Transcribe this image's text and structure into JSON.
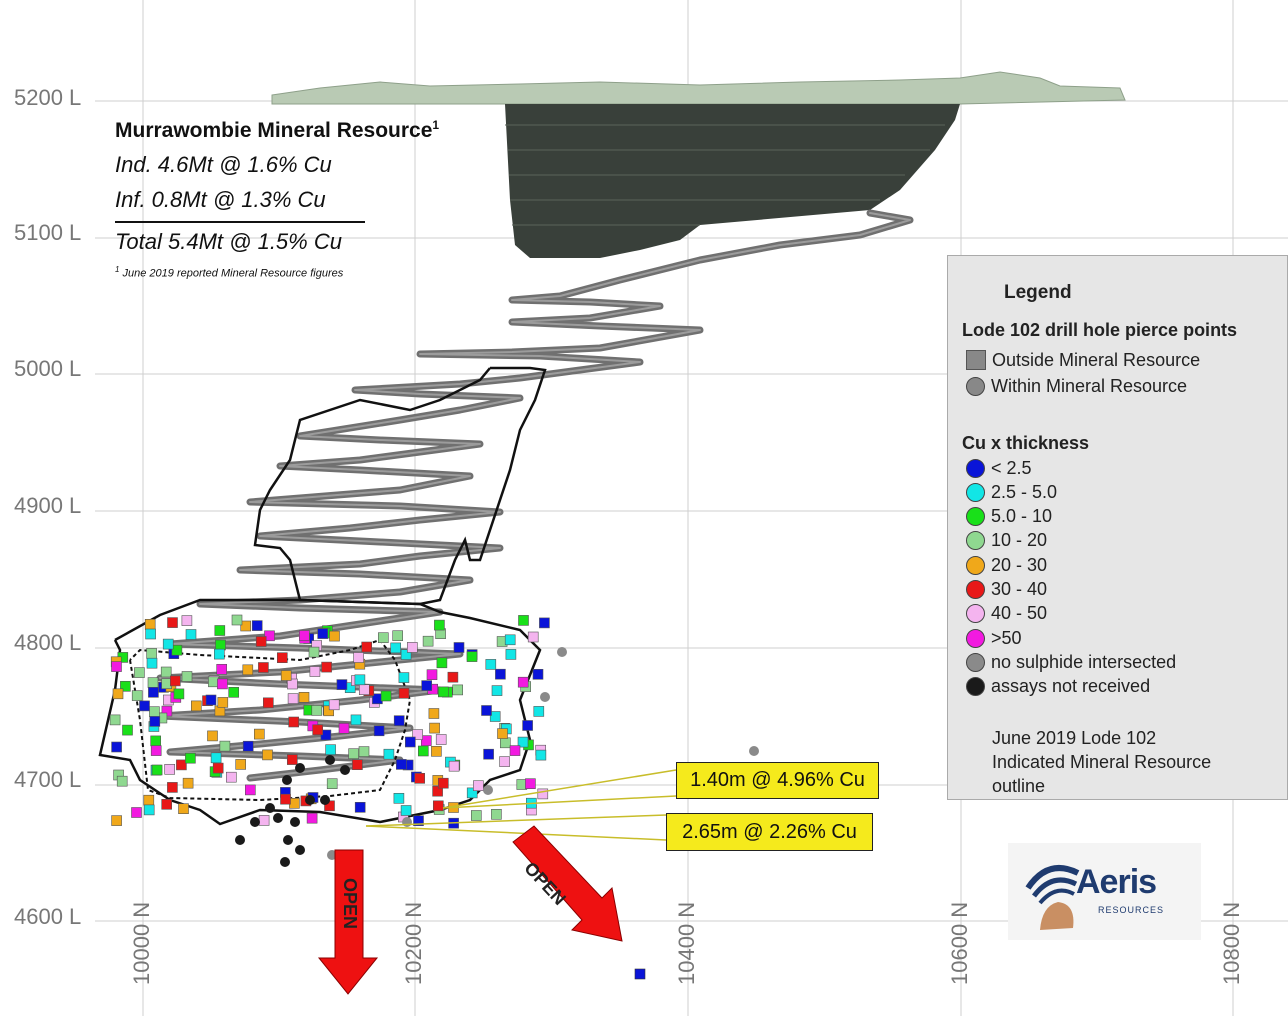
{
  "y_axis": {
    "levels": [
      {
        "label": "5200 L",
        "value": 5200
      },
      {
        "label": "5100 L",
        "value": 5100
      },
      {
        "label": "5000 L",
        "value": 5000
      },
      {
        "label": "4900 L",
        "value": 4900
      },
      {
        "label": "4800 L",
        "value": 4800
      },
      {
        "label": "4700 L",
        "value": 4700
      },
      {
        "label": "4600 L",
        "value": 4600
      }
    ]
  },
  "x_axis": {
    "northings": [
      {
        "label": "10000 N",
        "value": 10000
      },
      {
        "label": "10200 N",
        "value": 10200
      },
      {
        "label": "10400 N",
        "value": 10400
      },
      {
        "label": "10600 N",
        "value": 10600
      },
      {
        "label": "10800 N",
        "value": 10800
      }
    ]
  },
  "resource": {
    "title": "Murrawombie Mineral Resource",
    "title_sup": "1",
    "indicated": "Ind. 4.6Mt @ 1.6% Cu",
    "inferred": "Inf. 0.8Mt @ 1.3% Cu",
    "total": "Total 5.4Mt @ 1.5% Cu",
    "footnote_sup": "1",
    "footnote": " June 2019 reported Mineral Resource figures"
  },
  "legend": {
    "title": "Legend",
    "pierce_title": "Lode 102 drill hole pierce points",
    "outside": "Outside Mineral Resource",
    "within": "Within Mineral Resource",
    "cu_title": "Cu x thickness",
    "classes": [
      {
        "label": "< 2.5",
        "color": "#0a14d8"
      },
      {
        "label": "2.5 - 5.0",
        "color": "#12e6e6"
      },
      {
        "label": "5.0 - 10",
        "color": "#19e019"
      },
      {
        "label": "10 - 20",
        "color": "#8fd890"
      },
      {
        "label": "20 - 30",
        "color": "#f0a81a"
      },
      {
        "label": "30 - 40",
        "color": "#e81818"
      },
      {
        "label": "40 - 50",
        "color": "#f4b4ef"
      },
      {
        "label": ">50",
        "color": "#f21ae0"
      },
      {
        "label": "no sulphide intersected",
        "color": "#8a8a8a"
      },
      {
        "label": "assays not received",
        "color": "#1a1a1a"
      }
    ],
    "outline_line1": "June 2019 Lode 102",
    "outline_line2": "Indicated Mineral Resource",
    "outline_line3": "outline"
  },
  "callouts": {
    "upper": "1.40m @ 4.96% Cu",
    "lower": "2.65m @ 2.26% Cu"
  },
  "open_labels": {
    "first": "OPEN",
    "second": "OPEN"
  },
  "logo": {
    "name": "Aeris",
    "sub": "RESOURCES"
  }
}
